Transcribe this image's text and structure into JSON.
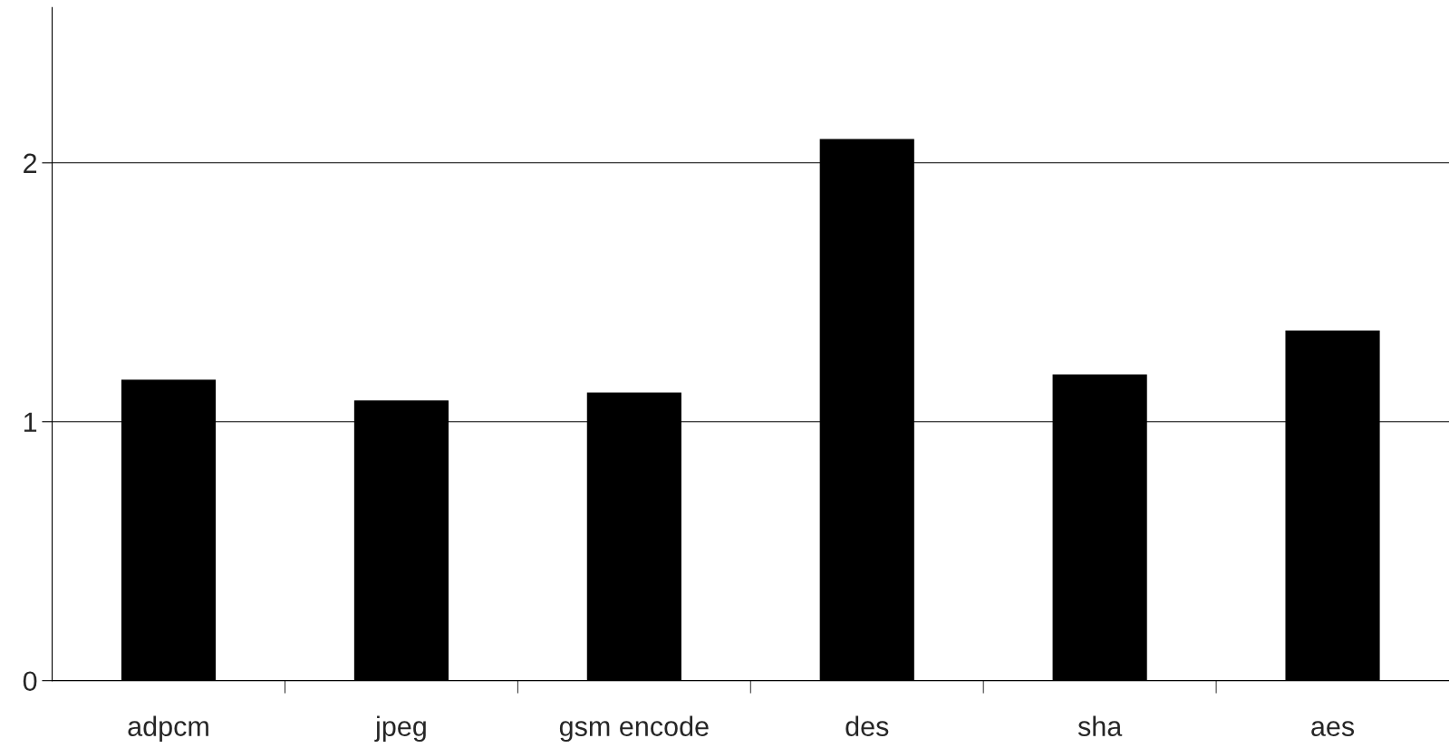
{
  "chart_data": {
    "type": "bar",
    "categories": [
      "adpcm",
      "jpeg",
      "gsm encode",
      "des",
      "sha",
      "aes"
    ],
    "values": [
      1.16,
      1.08,
      1.11,
      2.09,
      1.18,
      1.35
    ],
    "color": "#000000",
    "ylim": [
      0,
      2.6
    ],
    "yticks": [
      0,
      1,
      2
    ],
    "grid": "y"
  }
}
